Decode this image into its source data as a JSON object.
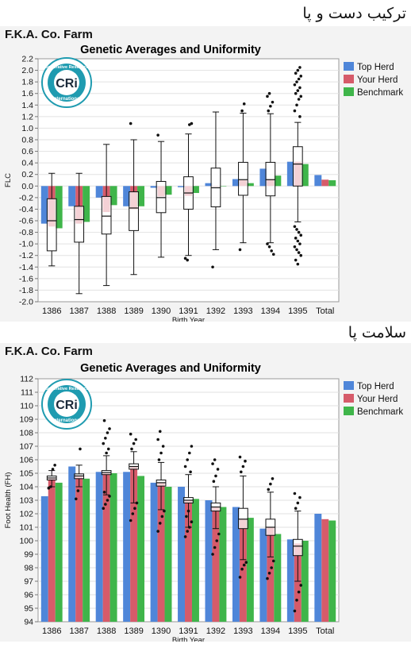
{
  "section1_heading": "ترکیب دست و پا",
  "section2_heading": "سلامت پا",
  "legend": [
    {
      "name": "Top Herd",
      "color": "#4f86d9"
    },
    {
      "name": "Your Herd",
      "color": "#d65b6a"
    },
    {
      "name": "Benchmark",
      "color": "#3fb54a"
    }
  ],
  "logo": {
    "arc_top": "Cooperative Resources",
    "arc_bottom": "International",
    "mark": "CRi",
    "icon": "cri-logo-icon"
  },
  "chart_data": [
    {
      "type": "bar",
      "farm": "F.K.A. Co. Farm",
      "title": "Genetic Averages and Uniformity",
      "xlabel": "Birth Year",
      "ylabel": "FLC",
      "ylim": [
        -2.0,
        2.2
      ],
      "ytick_step": 0.2,
      "grid": true,
      "legend_position": "right",
      "categories": [
        "1386",
        "1387",
        "1388",
        "1389",
        "1390",
        "1391",
        "1392",
        "1393",
        "1394",
        "1395",
        "Total"
      ],
      "series": [
        {
          "name": "Top Herd",
          "values": [
            -0.65,
            -0.35,
            -0.2,
            -0.35,
            -0.03,
            -0.02,
            0.05,
            0.12,
            0.3,
            0.42,
            0.19
          ]
        },
        {
          "name": "Your Herd",
          "values": [
            -0.7,
            -0.65,
            -0.45,
            -0.4,
            -0.18,
            -0.17,
            0.0,
            0.1,
            0.12,
            0.42,
            0.11
          ]
        },
        {
          "name": "Benchmark",
          "values": [
            -0.73,
            -0.62,
            -0.33,
            -0.35,
            -0.15,
            -0.12,
            0.0,
            0.05,
            0.18,
            0.38,
            0.1
          ]
        }
      ],
      "boxes": [
        {
          "category": "1386",
          "min": -1.38,
          "q1": -1.12,
          "median": -0.6,
          "q3": -0.22,
          "max": 0.22,
          "outliers": []
        },
        {
          "category": "1387",
          "min": -1.86,
          "q1": -0.97,
          "median": -0.58,
          "q3": -0.35,
          "max": 0.22,
          "outliers": []
        },
        {
          "category": "1388",
          "min": -1.72,
          "q1": -0.83,
          "median": -0.52,
          "q3": -0.18,
          "max": 0.72,
          "outliers": []
        },
        {
          "category": "1389",
          "min": -1.53,
          "q1": -0.77,
          "median": -0.38,
          "q3": -0.1,
          "max": 0.8,
          "outliers": [
            1.08
          ]
        },
        {
          "category": "1390",
          "min": -1.23,
          "q1": -0.46,
          "median": -0.2,
          "q3": 0.08,
          "max": 0.77,
          "outliers": [
            0.88
          ]
        },
        {
          "category": "1391",
          "min": -1.2,
          "q1": -0.4,
          "median": -0.12,
          "q3": 0.16,
          "max": 0.9,
          "outliers": [
            -1.25,
            -1.28,
            1.06,
            1.08
          ]
        },
        {
          "category": "1392",
          "min": -1.1,
          "q1": -0.36,
          "median": -0.03,
          "q3": 0.31,
          "max": 1.28,
          "outliers": [
            -1.4
          ]
        },
        {
          "category": "1393",
          "min": -0.98,
          "q1": -0.16,
          "median": 0.11,
          "q3": 0.41,
          "max": 1.26,
          "outliers": [
            -1.1,
            1.3,
            1.42
          ]
        },
        {
          "category": "1394",
          "min": -0.98,
          "q1": -0.17,
          "median": 0.11,
          "q3": 0.41,
          "max": 1.25,
          "outliers": [
            -1.0,
            -1.05,
            -1.12,
            -1.18,
            1.3,
            1.38,
            1.45,
            1.55,
            1.6
          ]
        },
        {
          "category": "1395",
          "min": -0.62,
          "q1": 0.0,
          "median": 0.38,
          "q3": 0.68,
          "max": 1.1,
          "outliers": [
            -0.7,
            -0.75,
            -0.8,
            -0.85,
            -0.9,
            -0.95,
            -1.0,
            -1.05,
            -1.1,
            -1.15,
            -1.2,
            -1.28,
            -1.35,
            1.2,
            1.3,
            1.4,
            1.5,
            1.55,
            1.6,
            1.65,
            1.7,
            1.75,
            1.8,
            1.85,
            1.9,
            1.95,
            2.0,
            2.05
          ]
        }
      ]
    },
    {
      "type": "bar",
      "farm": "F.K.A. Co. Farm",
      "title": "Genetic Averages and Uniformity",
      "xlabel": "Birth Year",
      "ylabel": "Foot Health (FH)",
      "ylim": [
        94,
        112
      ],
      "ytick_step": 1,
      "grid": true,
      "legend_position": "right",
      "categories": [
        "1386",
        "1387",
        "1388",
        "1389",
        "1390",
        "1391",
        "1392",
        "1393",
        "1394",
        "1395",
        "Total"
      ],
      "series": [
        {
          "name": "Top Herd",
          "values": [
            103.3,
            105.5,
            105.1,
            105.1,
            104.3,
            104.0,
            103.0,
            102.5,
            100.9,
            100.1,
            102.0
          ]
        },
        {
          "name": "Your Herd",
          "values": [
            104.6,
            104.8,
            105.0,
            105.5,
            104.3,
            103.0,
            102.5,
            101.6,
            101.0,
            99.8,
            101.6
          ]
        },
        {
          "name": "Benchmark",
          "values": [
            104.3,
            104.6,
            105.0,
            104.8,
            104.0,
            103.1,
            102.5,
            101.7,
            100.5,
            100.0,
            101.5
          ]
        }
      ],
      "boxes": [
        {
          "category": "1386",
          "min": 104.0,
          "q1": 104.5,
          "median": 104.65,
          "q3": 104.8,
          "max": 105.2,
          "outliers": [
            103.9,
            104.0,
            105.3,
            105.6
          ]
        },
        {
          "category": "1387",
          "min": 104.0,
          "q1": 104.6,
          "median": 104.8,
          "q3": 104.95,
          "max": 105.6,
          "outliers": [
            103.1,
            103.7,
            106.8
          ]
        },
        {
          "category": "1388",
          "min": 103.4,
          "q1": 104.9,
          "median": 105.05,
          "q3": 105.2,
          "max": 106.3,
          "outliers": [
            102.4,
            102.7,
            103.0,
            103.3,
            103.6,
            106.5,
            106.8,
            107.2,
            107.6,
            108.0,
            108.3,
            108.9
          ]
        },
        {
          "category": "1389",
          "min": 102.8,
          "q1": 105.3,
          "median": 105.5,
          "q3": 105.7,
          "max": 106.6,
          "outliers": [
            101.5,
            102.0,
            102.4,
            102.8,
            106.8,
            107.2,
            107.5,
            107.9
          ]
        },
        {
          "category": "1390",
          "min": 102.3,
          "q1": 104.05,
          "median": 104.3,
          "q3": 104.5,
          "max": 105.8,
          "outliers": [
            100.7,
            101.3,
            101.8,
            102.2,
            106.0,
            106.5,
            107.0,
            107.5,
            108.1
          ]
        },
        {
          "category": "1391",
          "min": 101.0,
          "q1": 102.8,
          "median": 103.0,
          "q3": 103.2,
          "max": 104.9,
          "outliers": [
            100.3,
            100.7,
            101.0,
            101.4,
            101.8,
            102.2,
            105.1,
            105.5,
            106.0,
            106.5,
            107.0
          ]
        },
        {
          "category": "1392",
          "min": 100.9,
          "q1": 102.2,
          "median": 102.5,
          "q3": 102.8,
          "max": 104.0,
          "outliers": [
            99.0,
            99.5,
            100.0,
            100.5,
            104.4,
            104.8,
            105.3,
            105.7,
            106.0
          ]
        },
        {
          "category": "1393",
          "min": 98.6,
          "q1": 100.9,
          "median": 101.6,
          "q3": 102.4,
          "max": 104.8,
          "outliers": [
            97.3,
            97.9,
            98.2,
            98.4,
            105.1,
            105.5,
            105.9,
            106.2
          ]
        },
        {
          "category": "1394",
          "min": 98.8,
          "q1": 100.4,
          "median": 101.0,
          "q3": 101.6,
          "max": 103.6,
          "outliers": [
            97.2,
            97.6,
            98.0,
            98.5,
            103.8,
            104.2,
            104.6
          ]
        },
        {
          "category": "1395",
          "min": 97.0,
          "q1": 98.9,
          "median": 99.6,
          "q3": 100.1,
          "max": 102.2,
          "outliers": [
            94.8,
            95.6,
            96.2,
            96.7,
            102.4,
            102.8,
            103.2,
            103.5
          ]
        }
      ]
    }
  ]
}
